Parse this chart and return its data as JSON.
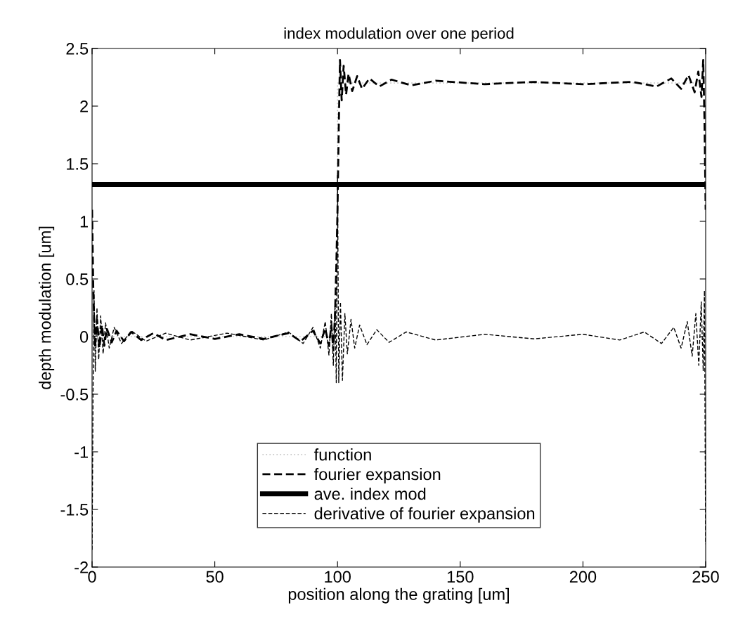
{
  "chart_data": {
    "type": "line",
    "title": "index modulation over one period",
    "xlabel": "position along the grating [um]",
    "ylabel": "depth modulation [um]",
    "xlim": [
      0,
      250
    ],
    "xticks": [
      0,
      50,
      100,
      150,
      200,
      250
    ],
    "ylim": [
      -2,
      2.5
    ],
    "yticks": [
      -2,
      -1.5,
      -1,
      -0.5,
      0,
      0.5,
      1,
      1.5,
      2,
      2.5
    ],
    "grid": false,
    "legend": "bottom",
    "series": [
      {
        "name": "function",
        "color": "#c8c8c8",
        "line_style": "dotted",
        "x": [
          0,
          100,
          100,
          250
        ],
        "values": [
          0,
          0,
          2.2,
          2.2
        ]
      },
      {
        "name": "fourier expansion",
        "color": "#000000",
        "line_style": "dashed",
        "x": [
          0,
          0.5,
          1.2,
          2,
          3,
          4,
          5,
          6,
          8,
          10,
          13,
          16,
          20,
          25,
          30,
          40,
          50,
          60,
          70,
          80,
          85,
          90,
          93,
          95,
          96.5,
          97.5,
          98.3,
          99,
          99.5,
          100,
          100.5,
          101,
          101.7,
          102.5,
          103.5,
          104.5,
          106,
          108,
          110,
          113,
          117,
          122,
          130,
          140,
          160,
          180,
          200,
          220,
          230,
          236,
          240,
          243,
          245.5,
          247,
          248.3,
          249,
          249.5,
          250
        ],
        "values": [
          1.1,
          0.4,
          -0.1,
          0.15,
          -0.1,
          0.1,
          -0.08,
          0.07,
          -0.05,
          0.05,
          -0.04,
          0.04,
          -0.03,
          0.03,
          -0.03,
          0.02,
          -0.02,
          0.02,
          -0.02,
          0.03,
          -0.04,
          0.05,
          -0.06,
          0.07,
          -0.08,
          0.1,
          -0.12,
          0.2,
          0.6,
          1.1,
          1.8,
          2.4,
          2.05,
          2.35,
          2.1,
          2.28,
          2.13,
          2.26,
          2.15,
          2.24,
          2.17,
          2.23,
          2.18,
          2.22,
          2.19,
          2.21,
          2.19,
          2.21,
          2.17,
          2.24,
          2.15,
          2.27,
          2.12,
          2.3,
          2.08,
          2.4,
          1.9,
          1.1
        ]
      },
      {
        "name": "ave. index mod",
        "color": "#000000",
        "line_style": "solid",
        "x": [
          0,
          250
        ],
        "values": [
          1.32,
          1.32
        ]
      },
      {
        "name": "derivative of fourier expansion",
        "color": "#000000",
        "line_style": "dashed",
        "x": [
          0,
          0.4,
          0.8,
          1.3,
          2,
          2.7,
          3.5,
          4.5,
          5.5,
          7,
          9,
          12,
          16,
          22,
          30,
          40,
          55,
          70,
          80,
          86,
          90,
          93,
          95,
          96.5,
          97.5,
          98.3,
          99,
          99.5,
          100,
          100.5,
          101.2,
          102,
          103,
          104,
          105.5,
          107,
          109,
          112,
          116,
          121,
          128,
          140,
          160,
          180,
          200,
          215,
          225,
          232,
          237,
          240,
          242.5,
          244.5,
          246,
          247.2,
          248.2,
          249,
          249.5,
          250
        ],
        "values": [
          -1.85,
          -0.5,
          0.4,
          -0.3,
          0.25,
          -0.2,
          0.18,
          -0.15,
          0.12,
          -0.1,
          0.08,
          -0.06,
          0.05,
          -0.04,
          0.03,
          -0.03,
          0.03,
          -0.03,
          0.04,
          -0.06,
          0.08,
          -0.1,
          0.13,
          -0.16,
          0.2,
          -0.25,
          0.3,
          -0.4,
          1.4,
          -0.4,
          0.3,
          -0.38,
          0.2,
          -0.15,
          0.15,
          -0.1,
          0.1,
          -0.07,
          0.06,
          -0.05,
          0.04,
          -0.03,
          0.02,
          -0.02,
          0.02,
          -0.03,
          0.04,
          -0.06,
          0.08,
          -0.1,
          0.13,
          -0.17,
          0.2,
          -0.25,
          0.3,
          -0.3,
          0.4,
          -1.8
        ]
      }
    ]
  }
}
